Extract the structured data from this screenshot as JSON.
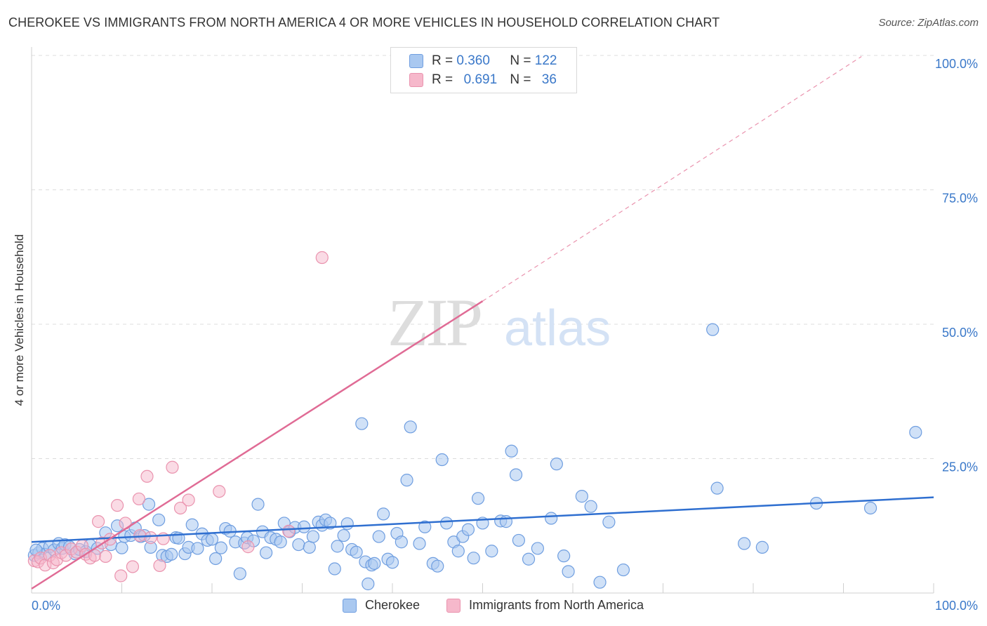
{
  "title": "CHEROKEE VS IMMIGRANTS FROM NORTH AMERICA 4 OR MORE VEHICLES IN HOUSEHOLD CORRELATION CHART",
  "source": "Source: ZipAtlas.com",
  "watermark": {
    "zip": "ZIP",
    "atlas": "atlas"
  },
  "legend": {
    "rows": [
      {
        "r_label": "R =",
        "r_value": "0.360",
        "n_label": "N =",
        "n_value": "122"
      },
      {
        "r_label": "R =",
        "r_value": "0.691",
        "n_label": "N =",
        "n_value": "36"
      }
    ]
  },
  "colors": {
    "blue_fill": "#a9c8f0",
    "blue_stroke": "#6f9ee0",
    "blue_line": "#2f6fd0",
    "pink_fill": "#f6b8cb",
    "pink_stroke": "#ea93ae",
    "pink_line": "#e06b95",
    "tick_text": "#3a78c9",
    "grid": "#dcdcdc"
  },
  "chart_data": {
    "type": "scatter",
    "title": "CHEROKEE VS IMMIGRANTS FROM NORTH AMERICA 4 OR MORE VEHICLES IN HOUSEHOLD CORRELATION CHART",
    "xlabel": "",
    "ylabel": "4 or more Vehicles in Household",
    "xlim": [
      0,
      100
    ],
    "ylim": [
      0,
      100
    ],
    "x_tick_labels": [
      "0.0%",
      "100.0%"
    ],
    "y_tick_labels": [
      "25.0%",
      "50.0%",
      "75.0%",
      "100.0%"
    ],
    "y_ticks": [
      25,
      50,
      75,
      100
    ],
    "grid": true,
    "legend_position": "bottom",
    "series": [
      {
        "name": "Cherokee",
        "color": "#a9c8f0",
        "trend": {
          "x": [
            0,
            100
          ],
          "y": [
            9.5,
            17.8
          ]
        },
        "points": [
          [
            0.3,
            7.0
          ],
          [
            0.8,
            7.5
          ],
          [
            1.2,
            8.3
          ],
          [
            1.5,
            7.2
          ],
          [
            2.0,
            8.6
          ],
          [
            2.5,
            8.0
          ],
          [
            3.0,
            9.2
          ],
          [
            3.4,
            8.3
          ],
          [
            3.7,
            9.0
          ],
          [
            4.2,
            8.6
          ],
          [
            4.8,
            7.3
          ],
          [
            5.3,
            8.1
          ],
          [
            6.0,
            7.7
          ],
          [
            6.5,
            8.9
          ],
          [
            7.3,
            8.3
          ],
          [
            8.2,
            11.2
          ],
          [
            8.8,
            9.0
          ],
          [
            9.5,
            12.5
          ],
          [
            10.0,
            8.4
          ],
          [
            10.3,
            10.5
          ],
          [
            11.0,
            10.7
          ],
          [
            11.5,
            12.1
          ],
          [
            12.1,
            10.5
          ],
          [
            12.5,
            10.7
          ],
          [
            13.0,
            16.5
          ],
          [
            13.2,
            8.5
          ],
          [
            14.1,
            13.6
          ],
          [
            14.5,
            7.0
          ],
          [
            15.0,
            6.8
          ],
          [
            15.5,
            7.2
          ],
          [
            16.0,
            10.3
          ],
          [
            16.3,
            10.2
          ],
          [
            17.0,
            7.3
          ],
          [
            17.4,
            8.5
          ],
          [
            17.8,
            12.7
          ],
          [
            18.4,
            8.3
          ],
          [
            18.9,
            11.0
          ],
          [
            19.5,
            9.8
          ],
          [
            20.0,
            10.0
          ],
          [
            20.4,
            6.4
          ],
          [
            21.0,
            8.4
          ],
          [
            21.5,
            12.0
          ],
          [
            22.0,
            11.5
          ],
          [
            22.6,
            9.5
          ],
          [
            23.1,
            3.6
          ],
          [
            23.6,
            9.3
          ],
          [
            23.9,
            10.3
          ],
          [
            24.6,
            9.7
          ],
          [
            25.1,
            16.5
          ],
          [
            25.6,
            11.4
          ],
          [
            26.0,
            7.5
          ],
          [
            26.5,
            10.3
          ],
          [
            27.1,
            10.0
          ],
          [
            27.6,
            9.5
          ],
          [
            28.0,
            13.0
          ],
          [
            28.6,
            11.4
          ],
          [
            29.2,
            12.2
          ],
          [
            29.6,
            9.0
          ],
          [
            30.2,
            12.3
          ],
          [
            30.8,
            8.5
          ],
          [
            31.2,
            10.5
          ],
          [
            31.8,
            13.2
          ],
          [
            32.2,
            12.6
          ],
          [
            32.6,
            13.6
          ],
          [
            33.1,
            13.0
          ],
          [
            33.6,
            4.5
          ],
          [
            33.9,
            8.7
          ],
          [
            34.6,
            10.7
          ],
          [
            35.0,
            12.9
          ],
          [
            35.5,
            8.1
          ],
          [
            36.0,
            7.6
          ],
          [
            36.6,
            31.5
          ],
          [
            37.0,
            5.8
          ],
          [
            37.3,
            1.7
          ],
          [
            37.7,
            5.2
          ],
          [
            38.0,
            5.5
          ],
          [
            38.5,
            10.5
          ],
          [
            39.0,
            14.7
          ],
          [
            39.5,
            6.3
          ],
          [
            40.0,
            5.7
          ],
          [
            40.5,
            11.1
          ],
          [
            41.0,
            9.5
          ],
          [
            41.6,
            21.0
          ],
          [
            42.0,
            30.9
          ],
          [
            43.0,
            9.2
          ],
          [
            43.6,
            12.3
          ],
          [
            44.5,
            5.5
          ],
          [
            45.0,
            5.0
          ],
          [
            45.5,
            24.8
          ],
          [
            46.0,
            13.0
          ],
          [
            46.8,
            9.5
          ],
          [
            47.3,
            7.8
          ],
          [
            47.8,
            10.5
          ],
          [
            48.4,
            11.8
          ],
          [
            49.0,
            6.5
          ],
          [
            49.5,
            17.6
          ],
          [
            50.0,
            13.0
          ],
          [
            51.0,
            7.8
          ],
          [
            52.0,
            13.4
          ],
          [
            52.6,
            13.3
          ],
          [
            53.2,
            26.4
          ],
          [
            53.7,
            22.0
          ],
          [
            54.0,
            9.8
          ],
          [
            55.1,
            6.3
          ],
          [
            56.1,
            8.3
          ],
          [
            57.6,
            13.9
          ],
          [
            58.2,
            24.0
          ],
          [
            59.0,
            6.9
          ],
          [
            59.5,
            4.0
          ],
          [
            61.0,
            18.0
          ],
          [
            62.0,
            16.1
          ],
          [
            63.0,
            2.0
          ],
          [
            64.0,
            13.2
          ],
          [
            65.6,
            4.3
          ],
          [
            75.5,
            49.0
          ],
          [
            76.0,
            19.5
          ],
          [
            79.0,
            9.2
          ],
          [
            81.0,
            8.5
          ],
          [
            87.0,
            16.7
          ],
          [
            93.0,
            15.8
          ],
          [
            98.0,
            29.9
          ],
          [
            0.5,
            8.0
          ]
        ]
      },
      {
        "name": "Immigrants from North America",
        "color": "#f6b8cb",
        "trend": {
          "x": [
            0,
            50
          ],
          "y": [
            0.8,
            54.3
          ]
        },
        "trend_extension": {
          "x": [
            50,
            92
          ],
          "y": [
            54.3,
            99.8
          ]
        },
        "points": [
          [
            0.3,
            6.0
          ],
          [
            0.7,
            5.8
          ],
          [
            1.0,
            6.5
          ],
          [
            1.5,
            5.2
          ],
          [
            2.0,
            7.0
          ],
          [
            2.4,
            5.6
          ],
          [
            2.8,
            6.2
          ],
          [
            3.3,
            7.5
          ],
          [
            3.8,
            7.0
          ],
          [
            4.4,
            8.2
          ],
          [
            5.0,
            7.6
          ],
          [
            5.6,
            8.8
          ],
          [
            6.0,
            7.2
          ],
          [
            6.5,
            6.5
          ],
          [
            7.0,
            7.0
          ],
          [
            7.4,
            13.3
          ],
          [
            7.8,
            9.3
          ],
          [
            8.2,
            6.8
          ],
          [
            8.7,
            10.0
          ],
          [
            9.5,
            16.3
          ],
          [
            9.9,
            3.2
          ],
          [
            10.4,
            13.0
          ],
          [
            11.2,
            4.9
          ],
          [
            11.9,
            17.5
          ],
          [
            12.0,
            10.7
          ],
          [
            12.8,
            21.7
          ],
          [
            13.2,
            10.3
          ],
          [
            14.2,
            5.1
          ],
          [
            14.6,
            10.1
          ],
          [
            15.6,
            23.4
          ],
          [
            16.5,
            15.8
          ],
          [
            17.4,
            17.3
          ],
          [
            20.8,
            18.9
          ],
          [
            24.0,
            8.6
          ],
          [
            28.5,
            11.5
          ],
          [
            32.2,
            62.4
          ]
        ]
      }
    ]
  },
  "bottom_legend": {
    "cherokee": "Cherokee",
    "immigrants": "Immigrants from North America"
  }
}
